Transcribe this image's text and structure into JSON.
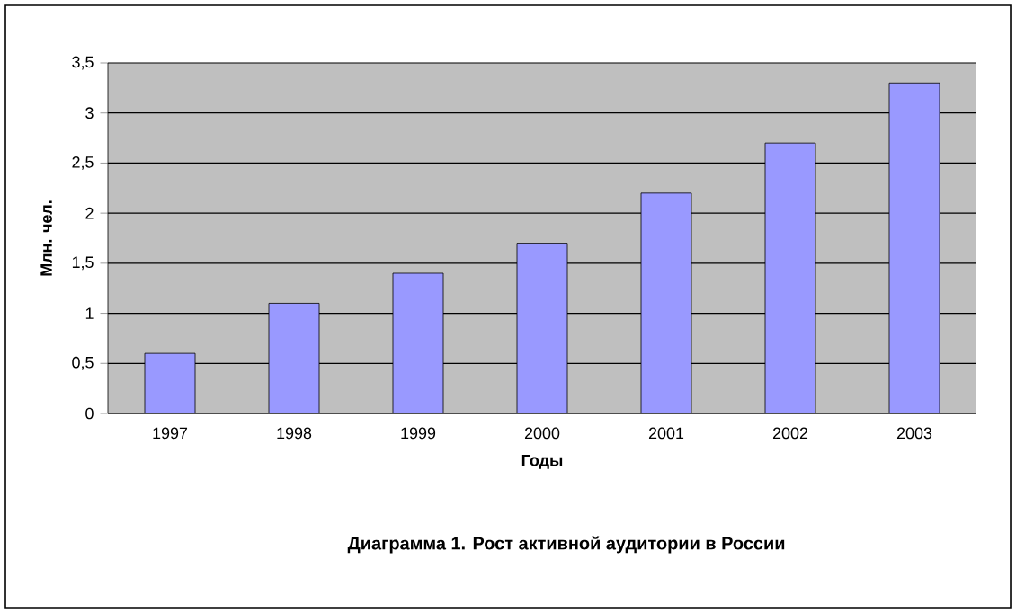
{
  "chart_data": {
    "type": "bar",
    "title": "Диаграмма 1.  Рост активной аудитории в России",
    "xlabel": "Годы",
    "ylabel": "Млн. чел.",
    "categories": [
      "1997",
      "1998",
      "1999",
      "2000",
      "2001",
      "2002",
      "2003"
    ],
    "values": [
      0.6,
      1.1,
      1.4,
      1.7,
      2.2,
      2.7,
      3.3
    ],
    "color": "#9999ff",
    "ylim": [
      0,
      3.5
    ],
    "yticks": [
      0,
      {
        "value": 0.5,
        "label": "0,5"
      },
      1,
      {
        "value": 1.5,
        "label": "1,5"
      },
      2,
      {
        "value": 2.5,
        "label": "2,5"
      },
      3,
      {
        "value": 3.5,
        "label": "3,5"
      }
    ],
    "grid": "y"
  }
}
